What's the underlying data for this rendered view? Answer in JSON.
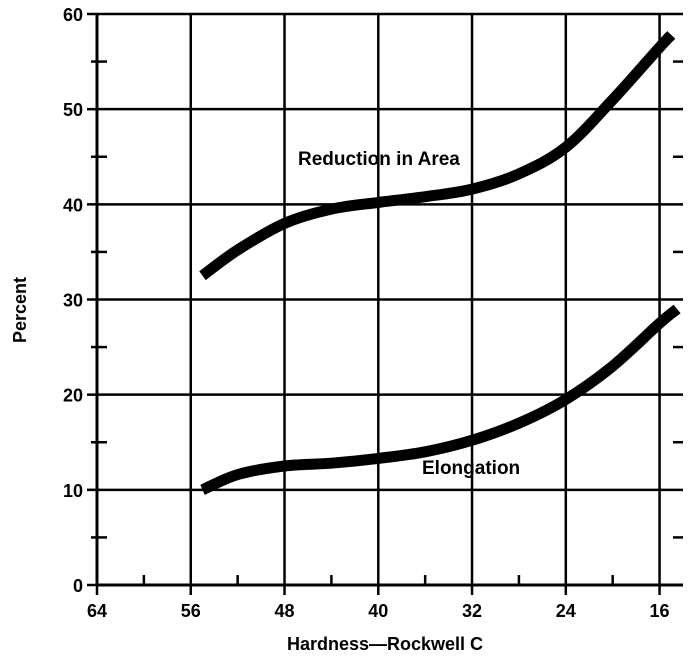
{
  "chart_data": {
    "type": "line",
    "title": "",
    "xlabel": "Hardness—Rockwell C",
    "ylabel": "Percent",
    "x_reversed": true,
    "xlim": [
      64,
      14
    ],
    "ylim": [
      0,
      60
    ],
    "x_ticks": [
      64,
      56,
      48,
      40,
      32,
      24,
      16
    ],
    "x_tick_labels": [
      "64",
      "56",
      "48",
      "40",
      "32",
      "24",
      "16"
    ],
    "x_minor_ticks": [
      60,
      52,
      44,
      36,
      28,
      20
    ],
    "y_ticks": [
      0,
      10,
      20,
      30,
      40,
      50,
      60
    ],
    "y_tick_labels": [
      "0",
      "10",
      "20",
      "30",
      "40",
      "50",
      "60"
    ],
    "y_minor_ticks": [
      5,
      15,
      25,
      35,
      45,
      55
    ],
    "grid": true,
    "legend": "none",
    "colors": {
      "line": "#000000",
      "grid": "#000000",
      "background": "#ffffff"
    },
    "series": [
      {
        "name": "Reduction in Area",
        "x": [
          55,
          52,
          48,
          44,
          40,
          36,
          32,
          28,
          24,
          20,
          16,
          15
        ],
        "y": [
          32.5,
          35.2,
          38,
          39.5,
          40.2,
          40.8,
          41.6,
          43.2,
          46,
          51,
          56.5,
          57.8
        ]
      },
      {
        "name": "Elongation",
        "x": [
          55,
          52,
          48,
          44,
          40,
          36,
          32,
          28,
          24,
          20,
          16,
          14.5
        ],
        "y": [
          10,
          11.6,
          12.5,
          12.8,
          13.3,
          14,
          15.2,
          17,
          19.5,
          23,
          27.5,
          29
        ]
      }
    ]
  }
}
